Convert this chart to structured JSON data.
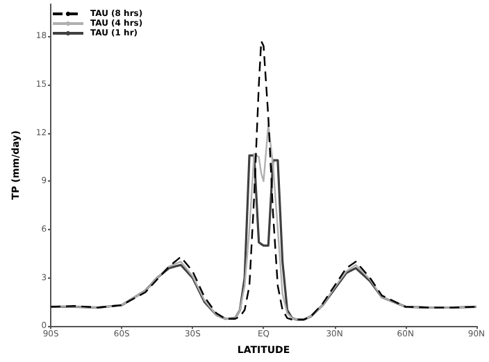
{
  "chart_data": {
    "type": "line",
    "xlabel": "LATITUDE",
    "ylabel": "TP (mm/day)",
    "x": [
      -90,
      -80,
      -70,
      -60,
      -50,
      -45,
      -40,
      -35,
      -30,
      -25,
      -20,
      -16,
      -12,
      -10,
      -8,
      -6,
      -4,
      -2,
      -1,
      0,
      2,
      4,
      6,
      8,
      10,
      12,
      14,
      17,
      20,
      25,
      30,
      35,
      39,
      45,
      50,
      60,
      70,
      80,
      90
    ],
    "series": [
      {
        "name": "TAU (8 hrs)",
        "color": "#000000",
        "line_style": "dashed",
        "values": [
          1.2,
          1.25,
          1.15,
          1.3,
          2.1,
          2.9,
          3.7,
          4.3,
          3.4,
          1.8,
          0.8,
          0.45,
          0.45,
          0.6,
          1.0,
          2.5,
          8,
          15,
          17.7,
          17.4,
          13,
          7,
          2.5,
          1.0,
          0.5,
          0.4,
          0.4,
          0.4,
          0.6,
          1.4,
          2.5,
          3.6,
          4.0,
          3.0,
          1.9,
          1.2,
          1.15,
          1.15,
          1.2
        ]
      },
      {
        "name": "TAU (4 hrs)",
        "color": "#b0b0b0",
        "line_style": "solid",
        "values": [
          1.2,
          1.2,
          1.15,
          1.3,
          2.2,
          3.0,
          3.7,
          4.0,
          3.1,
          1.6,
          0.7,
          0.45,
          0.5,
          1.0,
          2.5,
          6,
          10.7,
          10.5,
          9.5,
          9,
          12.5,
          10,
          6,
          2,
          0.8,
          0.5,
          0.4,
          0.4,
          0.6,
          1.3,
          2.4,
          3.4,
          3.8,
          2.9,
          1.8,
          1.2,
          1.15,
          1.15,
          1.2
        ]
      },
      {
        "name": "TAU (1 hr)",
        "color": "#404040",
        "line_style": "solid",
        "values": [
          1.2,
          1.2,
          1.15,
          1.3,
          2.2,
          3.0,
          3.6,
          3.8,
          3.0,
          1.5,
          0.7,
          0.45,
          0.5,
          1.0,
          3.0,
          10.6,
          10.6,
          5.2,
          5.1,
          5.0,
          5.0,
          10.3,
          10.3,
          4,
          1.0,
          0.5,
          0.4,
          0.4,
          0.6,
          1.3,
          2.3,
          3.3,
          3.6,
          2.8,
          1.8,
          1.2,
          1.15,
          1.15,
          1.2
        ]
      }
    ],
    "xlim": [
      -90,
      90
    ],
    "xticks": [
      {
        "value": -90,
        "label": "90S"
      },
      {
        "value": -60,
        "label": "60S"
      },
      {
        "value": -30,
        "label": "30S"
      },
      {
        "value": 0,
        "label": "EQ"
      },
      {
        "value": 30,
        "label": "30N"
      },
      {
        "value": 60,
        "label": "60N"
      },
      {
        "value": 90,
        "label": "90N"
      }
    ],
    "ylim": [
      0,
      20
    ],
    "yticks": [
      0,
      3,
      6,
      9,
      12,
      15,
      18
    ],
    "grid": false,
    "legend": "top left",
    "marker": "none"
  }
}
